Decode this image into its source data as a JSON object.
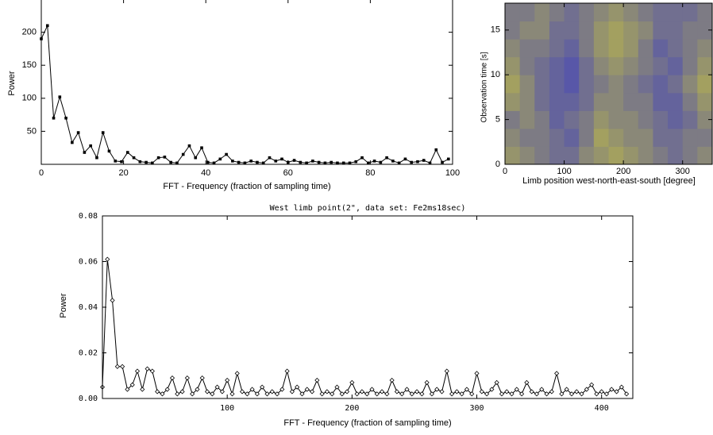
{
  "chart_data": [
    {
      "type": "line",
      "marker": "square",
      "color": "#000000",
      "x_label": "FFT - Frequency (fraction of sampling time)",
      "y_label": "Power",
      "x": [
        0,
        1.5,
        3,
        4.5,
        6,
        7.5,
        9,
        10.5,
        12,
        13.5,
        15,
        16.5,
        18,
        19.5,
        21,
        22.5,
        24,
        25.5,
        27,
        28.5,
        30,
        31.5,
        33,
        34.5,
        36,
        37.5,
        39,
        40.5,
        42,
        43.5,
        45,
        46.5,
        48,
        49.5,
        51,
        52.5,
        54,
        55.5,
        57,
        58.5,
        60,
        61.5,
        63,
        64.5,
        66,
        67.5,
        69,
        70.5,
        72,
        73.5,
        75,
        76.5,
        78,
        79.5,
        81,
        82.5,
        84,
        85.5,
        87,
        88.5,
        90,
        91.5,
        93,
        94.5,
        96,
        97.5,
        99
      ],
      "values": [
        190,
        210,
        70,
        102,
        70,
        33,
        48,
        18,
        28,
        10,
        48,
        20,
        5,
        4,
        18,
        10,
        4,
        3,
        2,
        10,
        11,
        3,
        2,
        15,
        28,
        10,
        25,
        3,
        2,
        8,
        15,
        5,
        3,
        2,
        5,
        3,
        2,
        10,
        5,
        8,
        3,
        6,
        3,
        2,
        5,
        3,
        2,
        3,
        2,
        2,
        2,
        4,
        10,
        2,
        5,
        3,
        10,
        5,
        2,
        8,
        3,
        4,
        6,
        2,
        22,
        3,
        8
      ],
      "xlim": [
        0,
        100
      ],
      "ylim": [
        0,
        250
      ],
      "xticks": [
        0,
        20,
        40,
        60,
        80,
        100
      ],
      "yticks": [
        50,
        100,
        150,
        200
      ]
    },
    {
      "type": "heatmap",
      "x_label": "Limb position west-north-east-south [degree]",
      "y_label": "Observation time [s]",
      "colormap": [
        "#4b4bb4",
        "#c8c43c"
      ],
      "xlim": [
        0,
        350
      ],
      "ylim": [
        0,
        18
      ],
      "xticks": [
        0,
        100,
        200,
        300
      ],
      "yticks": [
        0,
        5,
        10,
        15
      ],
      "z": [
        [
          0.6,
          0.5,
          0.4,
          0.3,
          0.3,
          0.5,
          0.6,
          0.7,
          0.6,
          0.5,
          0.4,
          0.3,
          0.4,
          0.5
        ],
        [
          0.5,
          0.4,
          0.4,
          0.3,
          0.2,
          0.4,
          0.7,
          0.6,
          0.5,
          0.5,
          0.3,
          0.3,
          0.4,
          0.4
        ],
        [
          0.4,
          0.5,
          0.4,
          0.2,
          0.3,
          0.4,
          0.6,
          0.5,
          0.5,
          0.4,
          0.3,
          0.2,
          0.3,
          0.5
        ],
        [
          0.6,
          0.5,
          0.3,
          0.2,
          0.2,
          0.3,
          0.5,
          0.5,
          0.4,
          0.4,
          0.2,
          0.2,
          0.4,
          0.6
        ],
        [
          0.7,
          0.5,
          0.3,
          0.2,
          0.1,
          0.3,
          0.4,
          0.5,
          0.4,
          0.3,
          0.2,
          0.3,
          0.5,
          0.7
        ],
        [
          0.6,
          0.4,
          0.3,
          0.2,
          0.1,
          0.3,
          0.5,
          0.6,
          0.5,
          0.4,
          0.3,
          0.2,
          0.4,
          0.6
        ],
        [
          0.5,
          0.4,
          0.4,
          0.3,
          0.2,
          0.4,
          0.6,
          0.7,
          0.6,
          0.4,
          0.2,
          0.3,
          0.4,
          0.5
        ],
        [
          0.4,
          0.5,
          0.5,
          0.3,
          0.3,
          0.4,
          0.6,
          0.7,
          0.6,
          0.5,
          0.3,
          0.3,
          0.4,
          0.4
        ],
        [
          0.4,
          0.4,
          0.5,
          0.4,
          0.3,
          0.4,
          0.5,
          0.6,
          0.5,
          0.4,
          0.3,
          0.3,
          0.3,
          0.4
        ]
      ]
    },
    {
      "type": "line",
      "marker": "diamond",
      "color": "#000000",
      "title": "West limb point(2\", data set: Fe2ms18sec)",
      "x_label": "FFT - Frequency (fraction of sampling time)",
      "y_label": "Power",
      "x": [
        0,
        4,
        8,
        12,
        16,
        20,
        24,
        28,
        32,
        36,
        40,
        44,
        48,
        52,
        56,
        60,
        64,
        68,
        72,
        76,
        80,
        84,
        88,
        92,
        96,
        100,
        104,
        108,
        112,
        116,
        120,
        124,
        128,
        132,
        136,
        140,
        144,
        148,
        152,
        156,
        160,
        164,
        168,
        172,
        176,
        180,
        184,
        188,
        192,
        196,
        200,
        204,
        208,
        212,
        216,
        220,
        224,
        228,
        232,
        236,
        240,
        244,
        248,
        252,
        256,
        260,
        264,
        268,
        272,
        276,
        280,
        284,
        288,
        292,
        296,
        300,
        304,
        308,
        312,
        316,
        320,
        324,
        328,
        332,
        336,
        340,
        344,
        348,
        352,
        356,
        360,
        364,
        368,
        372,
        376,
        380,
        384,
        388,
        392,
        396,
        400,
        404,
        408,
        412,
        416,
        420
      ],
      "values": [
        0.005,
        0.061,
        0.043,
        0.014,
        0.014,
        0.004,
        0.006,
        0.012,
        0.004,
        0.013,
        0.012,
        0.003,
        0.002,
        0.004,
        0.009,
        0.002,
        0.003,
        0.009,
        0.002,
        0.004,
        0.009,
        0.003,
        0.002,
        0.005,
        0.003,
        0.008,
        0.002,
        0.011,
        0.003,
        0.002,
        0.004,
        0.002,
        0.005,
        0.002,
        0.003,
        0.002,
        0.004,
        0.012,
        0.003,
        0.005,
        0.002,
        0.004,
        0.003,
        0.008,
        0.002,
        0.003,
        0.002,
        0.005,
        0.002,
        0.003,
        0.007,
        0.002,
        0.003,
        0.002,
        0.004,
        0.002,
        0.003,
        0.002,
        0.008,
        0.003,
        0.002,
        0.004,
        0.002,
        0.003,
        0.002,
        0.007,
        0.002,
        0.004,
        0.003,
        0.012,
        0.002,
        0.003,
        0.002,
        0.004,
        0.002,
        0.011,
        0.003,
        0.002,
        0.004,
        0.007,
        0.002,
        0.003,
        0.002,
        0.004,
        0.002,
        0.007,
        0.003,
        0.002,
        0.004,
        0.002,
        0.003,
        0.011,
        0.002,
        0.004,
        0.002,
        0.003,
        0.002,
        0.004,
        0.006,
        0.002,
        0.003,
        0.002,
        0.004,
        0.003,
        0.005,
        0.002
      ],
      "xlim": [
        0,
        425
      ],
      "ylim": [
        0,
        0.08
      ],
      "xticks": [
        100,
        200,
        300,
        400
      ],
      "yticks": [
        {
          "value": 0,
          "label": "0.00"
        },
        0.02,
        0.04,
        0.06,
        0.08
      ]
    }
  ]
}
